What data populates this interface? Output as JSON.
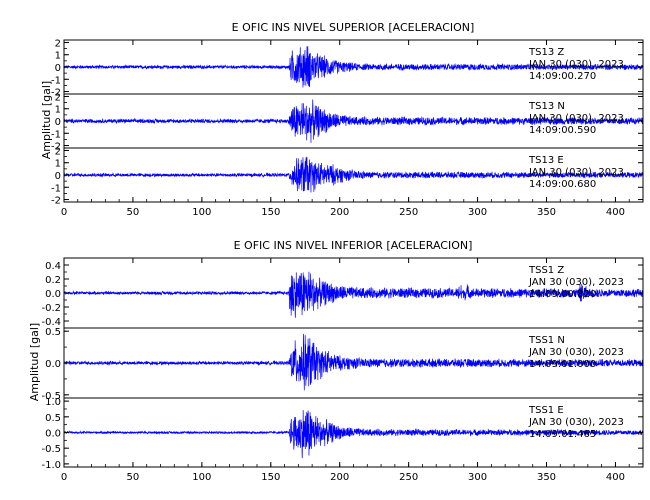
{
  "chart_data": [
    {
      "type": "line",
      "title": "E OFIC INS NIVEL SUPERIOR [ACELERACION]",
      "ylabel": "Amplitud [gal]",
      "xlabel": "",
      "xlim": [
        0,
        420
      ],
      "x_ticks": [
        0,
        50,
        100,
        150,
        200,
        250,
        300,
        350,
        400
      ],
      "x_tick_labels": [
        "0",
        "50",
        "100",
        "150",
        "200",
        "250",
        "300",
        "350",
        "400"
      ],
      "line_color": "#0000ff",
      "series": [
        {
          "name": "TS13 Z",
          "label_lines": [
            "TS13 Z",
            "JAN 30 (030), 2023",
            "14:09:00.270"
          ],
          "ylim": [
            -2.2,
            2.2
          ],
          "y_ticks": [
            -2,
            -1,
            0,
            1,
            2
          ],
          "y_tick_labels": [
            "-2",
            "-1",
            "0",
            "1",
            "2"
          ],
          "noise": 0.15,
          "envelope": [
            [
              0,
              0
            ],
            [
              163,
              0
            ],
            [
              165,
              1.4
            ],
            [
              170,
              1.6
            ],
            [
              176,
              2.0
            ],
            [
              182,
              1.2
            ],
            [
              190,
              0.8
            ],
            [
              200,
              0.4
            ],
            [
              215,
              0.15
            ],
            [
              420,
              0.1
            ]
          ]
        },
        {
          "name": "TS13 N",
          "label_lines": [
            "TS13 N",
            "JAN 30 (030), 2023",
            "14:09:00.590"
          ],
          "ylim": [
            -2.2,
            2.2
          ],
          "y_ticks": [
            -2,
            -1,
            0,
            1,
            2
          ],
          "y_tick_labels": [
            "-2",
            "-1",
            "0",
            "1",
            "2"
          ],
          "noise": 0.18,
          "envelope": [
            [
              0,
              0
            ],
            [
              163,
              0
            ],
            [
              165,
              1.3
            ],
            [
              170,
              1.6
            ],
            [
              178,
              1.8
            ],
            [
              185,
              1.2
            ],
            [
              195,
              0.6
            ],
            [
              210,
              0.2
            ],
            [
              420,
              0.12
            ]
          ]
        },
        {
          "name": "TS13 E",
          "label_lines": [
            "TS13 E",
            "JAN 30 (030), 2023",
            "14:09:00.680"
          ],
          "ylim": [
            -2.2,
            2.2
          ],
          "y_ticks": [
            -2,
            -1,
            0,
            1,
            2
          ],
          "y_tick_labels": [
            "-2",
            "-1",
            "0",
            "1",
            "2"
          ],
          "noise": 0.15,
          "envelope": [
            [
              0,
              0
            ],
            [
              163,
              0
            ],
            [
              165,
              1.0
            ],
            [
              175,
              1.8
            ],
            [
              185,
              1.0
            ],
            [
              195,
              0.8
            ],
            [
              205,
              0.4
            ],
            [
              220,
              0.15
            ],
            [
              420,
              0.1
            ]
          ]
        }
      ]
    },
    {
      "type": "line",
      "title": "E OFIC INS NIVEL INFERIOR [ACELERACION]",
      "ylabel": "Amplitud [gal]",
      "xlabel": "",
      "xlim": [
        0,
        420
      ],
      "x_ticks": [
        0,
        50,
        100,
        150,
        200,
        250,
        300,
        350,
        400
      ],
      "x_tick_labels": [
        "0",
        "50",
        "100",
        "150",
        "200",
        "250",
        "300",
        "350",
        "400"
      ],
      "line_color": "#0000ff",
      "series": [
        {
          "name": "TSS1 Z",
          "label_lines": [
            "TSS1 Z",
            "JAN 30 (030), 2023",
            "14:09:00.820"
          ],
          "ylim": [
            -0.5,
            0.5
          ],
          "y_ticks": [
            -0.4,
            -0.2,
            0.0,
            0.2,
            0.4
          ],
          "y_tick_labels": [
            "-0.4",
            "-0.2",
            "0.0",
            "0.2",
            "0.4"
          ],
          "noise": 0.025,
          "spikes": [
            [
              287,
              0.08
            ],
            [
              292,
              0.06
            ],
            [
              375,
              0.09
            ],
            [
              378,
              0.07
            ]
          ],
          "envelope": [
            [
              0,
              0
            ],
            [
              163,
              0
            ],
            [
              164,
              0.5
            ],
            [
              168,
              0.35
            ],
            [
              176,
              0.4
            ],
            [
              185,
              0.2
            ],
            [
              200,
              0.1
            ],
            [
              215,
              0.06
            ],
            [
              420,
              0.04
            ]
          ]
        },
        {
          "name": "TSS1 N",
          "label_lines": [
            "TSS1 N",
            "JAN 30 (030), 2023",
            "14:09:01.000"
          ],
          "ylim": [
            -0.55,
            0.55
          ],
          "y_ticks": [
            -0.5,
            0.0,
            0.5
          ],
          "y_tick_labels": [
            "-0.5",
            "0.0",
            "0.5"
          ],
          "noise": 0.03,
          "envelope": [
            [
              0,
              0
            ],
            [
              163,
              0
            ],
            [
              165,
              0.3
            ],
            [
              170,
              0.4
            ],
            [
              177,
              0.5
            ],
            [
              185,
              0.25
            ],
            [
              200,
              0.1
            ],
            [
              220,
              0.05
            ],
            [
              420,
              0.03
            ]
          ]
        },
        {
          "name": "TSS1 E",
          "label_lines": [
            "TSS1 E",
            "JAN 30 (030), 2023",
            "14:09:01.465"
          ],
          "ylim": [
            -1.1,
            1.1
          ],
          "y_ticks": [
            -1.0,
            -0.5,
            0.0,
            0.5,
            1.0
          ],
          "y_tick_labels": [
            "-1.0",
            "-0.5",
            "0.0",
            "0.5",
            "1.0"
          ],
          "noise": 0.04,
          "envelope": [
            [
              0,
              0
            ],
            [
              163,
              0
            ],
            [
              165,
              0.6
            ],
            [
              170,
              0.7
            ],
            [
              176,
              1.0
            ],
            [
              185,
              0.5
            ],
            [
              200,
              0.2
            ],
            [
              220,
              0.08
            ],
            [
              420,
              0.05
            ]
          ]
        }
      ]
    }
  ]
}
